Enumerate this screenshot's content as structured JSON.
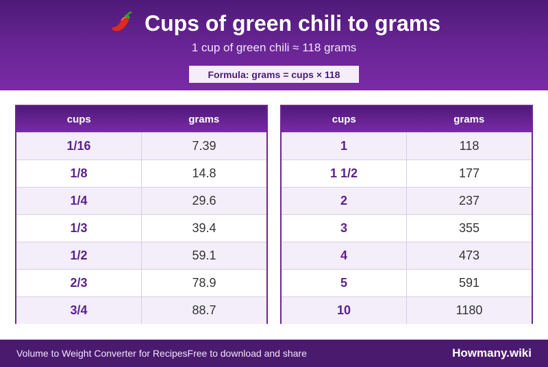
{
  "header": {
    "title": "Cups of green chili to grams",
    "subtitle": "1 cup of green chili ≈ 118 grams",
    "formula": "Formula: grams = cups × 118"
  },
  "table_left": {
    "columns": [
      "cups",
      "grams"
    ],
    "rows": [
      {
        "cups": "1/16",
        "grams": "7.39"
      },
      {
        "cups": "1/8",
        "grams": "14.8"
      },
      {
        "cups": "1/4",
        "grams": "29.6"
      },
      {
        "cups": "1/3",
        "grams": "39.4"
      },
      {
        "cups": "1/2",
        "grams": "59.1"
      },
      {
        "cups": "2/3",
        "grams": "78.9"
      },
      {
        "cups": "3/4",
        "grams": "88.7"
      }
    ]
  },
  "table_right": {
    "columns": [
      "cups",
      "grams"
    ],
    "rows": [
      {
        "cups": "1",
        "grams": "118"
      },
      {
        "cups": "1 1/2",
        "grams": "177"
      },
      {
        "cups": "2",
        "grams": "237"
      },
      {
        "cups": "3",
        "grams": "355"
      },
      {
        "cups": "4",
        "grams": "473"
      },
      {
        "cups": "5",
        "grams": "591"
      },
      {
        "cups": "10",
        "grams": "1180"
      }
    ]
  },
  "footer": {
    "left_text": "Volume to Weight Converter for RecipesFree to download and share",
    "brand": "Howmany.wiki"
  },
  "icons": {
    "title_icon": "chili-pepper-icon"
  },
  "colors": {
    "primary": "#6a2596",
    "header_dark": "#4e1a78",
    "footer": "#4a1a6e",
    "row_alt": "#f3eefa",
    "cups_text": "#5b1f8a"
  }
}
